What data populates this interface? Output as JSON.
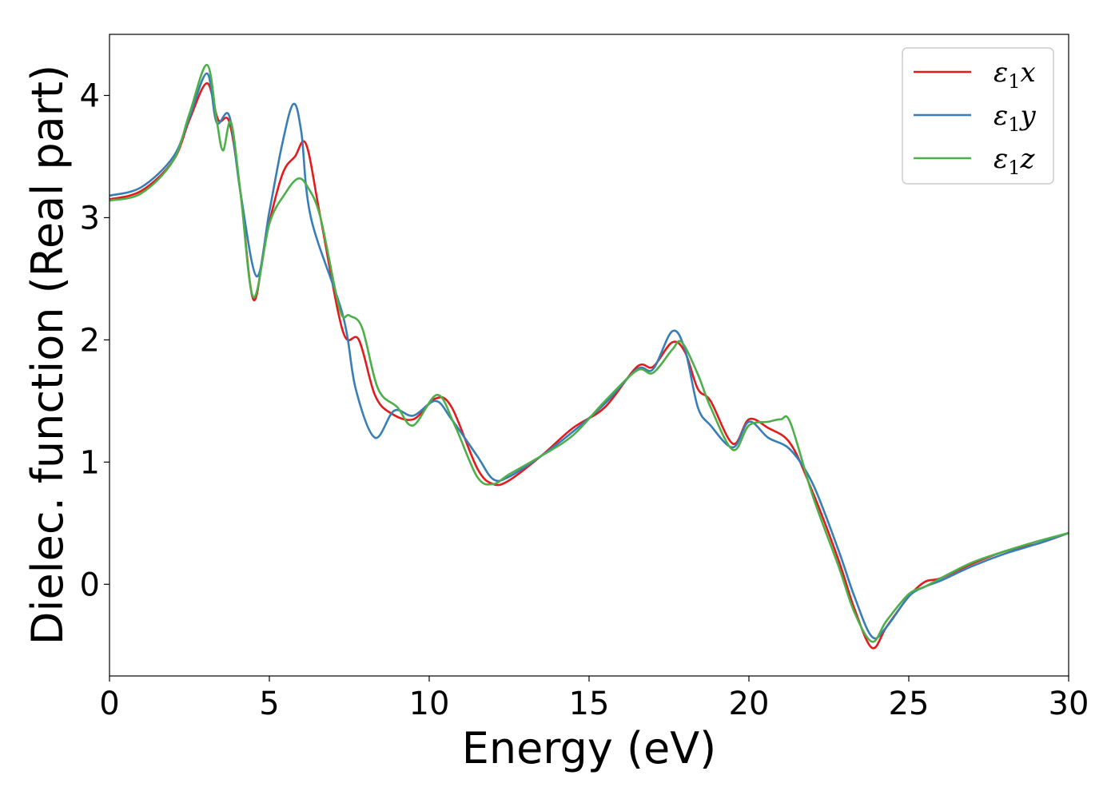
{
  "chart_data": {
    "type": "line",
    "title": "",
    "xlabel": "Energy (eV)",
    "ylabel": "Dielec. function (Real part)",
    "xlim": [
      0,
      30
    ],
    "ylim": [
      -0.75,
      4.5
    ],
    "xticks": [
      0,
      5,
      10,
      15,
      20,
      25,
      30
    ],
    "yticks": [
      0,
      1,
      2,
      3,
      4
    ],
    "grid": false,
    "legend_position": "top-right",
    "series": [
      {
        "name": "ε1x",
        "legend_main": "ε",
        "legend_sub": "1",
        "legend_axis": "x",
        "color": "#e41a1c",
        "x": [
          0,
          1,
          2,
          2.5,
          3.05,
          3.4,
          3.75,
          4.1,
          4.5,
          4.9,
          5.4,
          5.8,
          6.15,
          6.6,
          7.3,
          7.8,
          8.3,
          8.8,
          9.5,
          10.2,
          10.7,
          11.5,
          12.0,
          12.5,
          13.5,
          14.5,
          15.5,
          16.5,
          17.0,
          17.6,
          18.0,
          18.4,
          18.8,
          19.5,
          20.0,
          20.6,
          21.3,
          22.0,
          22.8,
          23.3,
          23.85,
          24.3,
          25.0,
          25.5,
          26.0,
          27.0,
          28.0,
          29.0,
          30.0
        ],
        "y": [
          3.15,
          3.22,
          3.47,
          3.8,
          4.1,
          3.8,
          3.78,
          3.2,
          2.33,
          2.85,
          3.35,
          3.5,
          3.6,
          3.0,
          2.07,
          2.0,
          1.55,
          1.4,
          1.35,
          1.52,
          1.45,
          0.95,
          0.82,
          0.85,
          1.05,
          1.28,
          1.45,
          1.78,
          1.78,
          1.98,
          1.9,
          1.6,
          1.5,
          1.15,
          1.35,
          1.28,
          1.15,
          0.75,
          0.2,
          -0.2,
          -0.52,
          -0.35,
          -0.1,
          0.02,
          0.05,
          0.17,
          0.27,
          0.33,
          0.42
        ]
      },
      {
        "name": "ε1y",
        "legend_main": "ε",
        "legend_sub": "1",
        "legend_axis": "y",
        "color": "#377eb8",
        "x": [
          0,
          1,
          2,
          2.5,
          3.05,
          3.35,
          3.75,
          4.1,
          4.6,
          5.0,
          5.4,
          5.75,
          6.0,
          6.3,
          7.3,
          7.7,
          8.3,
          8.9,
          9.5,
          10.2,
          10.7,
          11.5,
          12.0,
          12.5,
          13.5,
          14.5,
          15.5,
          16.5,
          17.0,
          17.6,
          18.0,
          18.4,
          18.8,
          19.5,
          20.0,
          20.6,
          21.3,
          22.0,
          22.8,
          23.3,
          23.85,
          24.3,
          25.0,
          25.5,
          26.0,
          27.0,
          28.0,
          29.0,
          30.0
        ],
        "y": [
          3.18,
          3.25,
          3.5,
          3.82,
          4.18,
          3.78,
          3.83,
          3.2,
          2.52,
          3.05,
          3.6,
          3.93,
          3.7,
          3.0,
          2.2,
          1.6,
          1.2,
          1.42,
          1.38,
          1.5,
          1.35,
          1.05,
          0.86,
          0.88,
          1.05,
          1.25,
          1.48,
          1.76,
          1.76,
          2.07,
          1.92,
          1.45,
          1.3,
          1.12,
          1.33,
          1.2,
          1.1,
          0.82,
          0.28,
          -0.1,
          -0.43,
          -0.35,
          -0.1,
          -0.02,
          0.03,
          0.15,
          0.25,
          0.33,
          0.42
        ]
      },
      {
        "name": "ε1z",
        "legend_main": "ε",
        "legend_sub": "1",
        "legend_axis": "z",
        "color": "#4daf4a",
        "x": [
          0,
          1,
          2,
          2.5,
          3.05,
          3.35,
          3.55,
          3.8,
          4.1,
          4.5,
          5.0,
          5.5,
          5.9,
          6.2,
          6.6,
          7.2,
          7.5,
          7.9,
          8.4,
          9.0,
          9.5,
          10.25,
          10.8,
          11.5,
          12.0,
          12.5,
          13.5,
          14.5,
          15.5,
          16.5,
          17.0,
          17.6,
          17.9,
          18.4,
          18.8,
          19.5,
          20.0,
          20.6,
          21.0,
          21.3,
          22.0,
          22.8,
          23.3,
          23.85,
          24.3,
          25.0,
          25.5,
          26.0,
          27.0,
          28.0,
          29.0,
          30.0
        ],
        "y": [
          3.14,
          3.2,
          3.47,
          3.85,
          4.25,
          3.8,
          3.55,
          3.78,
          3.2,
          2.35,
          2.95,
          3.2,
          3.32,
          3.25,
          3.0,
          2.25,
          2.2,
          2.1,
          1.6,
          1.45,
          1.3,
          1.55,
          1.3,
          0.88,
          0.82,
          0.9,
          1.05,
          1.22,
          1.5,
          1.75,
          1.73,
          1.92,
          1.98,
          1.72,
          1.45,
          1.1,
          1.3,
          1.33,
          1.35,
          1.32,
          0.72,
          0.15,
          -0.23,
          -0.47,
          -0.3,
          -0.08,
          -0.02,
          0.05,
          0.18,
          0.27,
          0.35,
          0.42
        ]
      }
    ]
  }
}
